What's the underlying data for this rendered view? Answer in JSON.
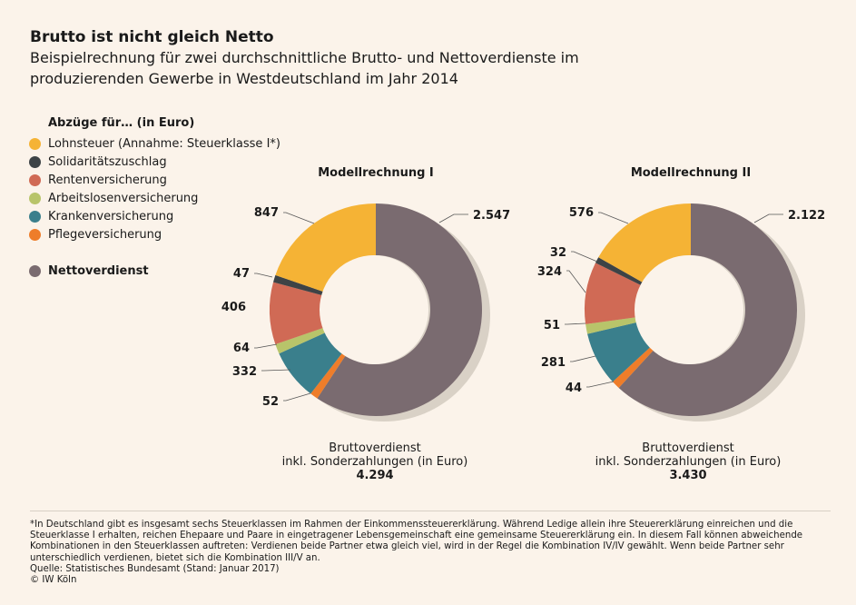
{
  "title": "Brutto ist nicht gleich Netto",
  "subtitle": "Beispielrechnung für zwei durchschnittliche Brutto- und Nettoverdienste im produzierenden Gewerbe in Westdeutschland im Jahr 2014",
  "legend": {
    "title": "Abzüge für… (in Euro)",
    "items": [
      {
        "label": "Lohnsteuer (Annahme: Steuerklasse I*)",
        "color": "#f5b335"
      },
      {
        "label": "Solidaritätszuschlag",
        "color": "#3d4346"
      },
      {
        "label": "Rentenversicherung",
        "color": "#d06a55"
      },
      {
        "label": "Arbeitslosenversicherung",
        "color": "#b8c46a"
      },
      {
        "label": "Krankenversicherung",
        "color": "#3a7f8c"
      },
      {
        "label": "Pflegeversicherung",
        "color": "#ee7d2a"
      }
    ],
    "net": {
      "label": "Nettoverdienst",
      "color": "#7a6b70"
    }
  },
  "chart_data": [
    {
      "type": "pie",
      "title": "Modellrechnung I",
      "categories": [
        "Nettoverdienst",
        "Pflegeversicherung",
        "Krankenversicherung",
        "Arbeitslosenversicherung",
        "Rentenversicherung",
        "Solidaritätszuschlag",
        "Lohnsteuer"
      ],
      "values": [
        2547,
        52,
        332,
        64,
        406,
        47,
        847
      ],
      "value_labels": [
        "2.547",
        "52",
        "332",
        "64",
        "406",
        "47",
        "847"
      ],
      "footer_label": "Bruttoverdienst\ninkl. Sonderzahlungen (in Euro)",
      "total": "4.294"
    },
    {
      "type": "pie",
      "title": "Modellrechnung II",
      "categories": [
        "Nettoverdienst",
        "Pflegeversicherung",
        "Krankenversicherung",
        "Arbeitslosenversicherung",
        "Rentenversicherung",
        "Solidaritätszuschlag",
        "Lohnsteuer"
      ],
      "values": [
        2122,
        44,
        281,
        51,
        324,
        32,
        576
      ],
      "value_labels": [
        "2.122",
        "44",
        "281",
        "51",
        "324",
        "32",
        "576"
      ],
      "footer_label": "Bruttoverdienst\ninkl. Sonderzahlungen (in Euro)",
      "total": "3.430"
    }
  ],
  "colors": {
    "Nettoverdienst": "#7a6b70",
    "Pflegeversicherung": "#ee7d2a",
    "Krankenversicherung": "#3a7f8c",
    "Arbeitslosenversicherung": "#b8c46a",
    "Rentenversicherung": "#d06a55",
    "Solidaritätszuschlag": "#3d4346",
    "Lohnsteuer": "#f5b335",
    "shadow": "#d9d1c6"
  },
  "footnote": {
    "lines": [
      "*In Deutschland gibt es insgesamt sechs Steuerklassen im Rahmen der Einkommenssteuererklärung. Während Ledige allein ihre Steuererklärung einreichen und die",
      "Steuerklasse I erhalten, reichen Ehepaare und Paare in eingetragener Lebensgemeinschaft eine gemeinsame Steuererklärung ein. In diesem Fall können abweichende",
      "Kombinationen in den Steuerklassen auftreten: Verdienen beide Partner etwa gleich viel, wird in der Regel die Kombination IV/IV gewählt. Wenn beide Partner sehr",
      "unterschiedlich verdienen, bietet sich die Kombination III/V an.",
      "Quelle: Statistisches Bundesamt (Stand: Januar 2017)",
      "© IW Köln"
    ]
  }
}
